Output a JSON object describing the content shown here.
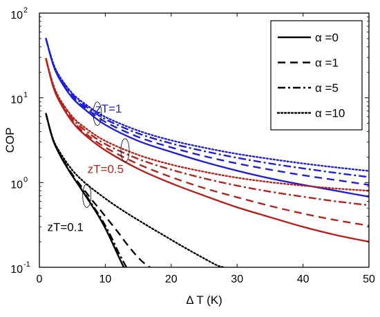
{
  "chart_data": {
    "type": "line",
    "title": "",
    "xlabel": "Δ T (K)",
    "ylabel": "COP",
    "xlim": [
      0,
      50
    ],
    "ylim": [
      0.1,
      100
    ],
    "yscale": "log",
    "grid": false,
    "legend_position": "top-right",
    "x_ticks": [
      0,
      10,
      20,
      30,
      40,
      50
    ],
    "x_tick_labels": [
      "0",
      "10",
      "20",
      "30",
      "40",
      "50"
    ],
    "y_ticks": [
      0.1,
      1,
      10,
      100
    ],
    "y_tick_labels": [
      {
        "base": "10",
        "exp": "-1"
      },
      {
        "base": "10",
        "exp": "0"
      },
      {
        "base": "10",
        "exp": "1"
      },
      {
        "base": "10",
        "exp": "2"
      }
    ],
    "legend": [
      {
        "label": "α =0",
        "dash": "solid"
      },
      {
        "label": "α =1",
        "dash": "dashed"
      },
      {
        "label": "α =5",
        "dash": "dashdot"
      },
      {
        "label": "α =10",
        "dash": "dotted"
      }
    ],
    "colors": {
      "zT=1": "#1f1fd6",
      "zT=0.5": "#b5221c",
      "zT=0.1": "#000000"
    },
    "group_labels": [
      {
        "text": "zT=1",
        "color": "#1f1fd6",
        "x": 8.5,
        "y": 7.5,
        "ellipse_x": 8.8,
        "ellipse_y": 6.5
      },
      {
        "text": "zT=0.5",
        "color": "#b5221c",
        "x": 7.3,
        "y": 1.45,
        "ellipse_x": 13.0,
        "ellipse_y": 2.4
      },
      {
        "text": "zT=0.1",
        "color": "#000000",
        "x": 1.2,
        "y": 0.3,
        "ellipse_x": 7.2,
        "ellipse_y": 0.7
      }
    ],
    "series": [
      {
        "name": "zT=1, α =0",
        "group": "zT=1",
        "dash": "solid",
        "x": [
          1,
          2,
          3,
          5,
          7,
          10,
          15,
          20,
          25,
          30,
          35,
          40,
          45,
          50
        ],
        "y": [
          50,
          26,
          17,
          10,
          7.2,
          4.8,
          3.1,
          2.3,
          1.75,
          1.38,
          1.12,
          0.94,
          0.8,
          0.68
        ]
      },
      {
        "name": "zT=1, α =1",
        "group": "zT=1",
        "dash": "dashed",
        "x": [
          1,
          2,
          3,
          5,
          7,
          10,
          15,
          20,
          25,
          30,
          35,
          40,
          45,
          50
        ],
        "y": [
          50,
          26,
          17.3,
          10.4,
          7.6,
          5.2,
          3.45,
          2.6,
          2.05,
          1.68,
          1.42,
          1.22,
          1.07,
          0.94
        ]
      },
      {
        "name": "zT=1, α =5",
        "group": "zT=1",
        "dash": "dashdot",
        "x": [
          1,
          2,
          3,
          5,
          7,
          10,
          15,
          20,
          25,
          30,
          35,
          40,
          45,
          50
        ],
        "y": [
          50,
          26.5,
          17.8,
          10.9,
          8.0,
          5.6,
          3.8,
          2.9,
          2.35,
          1.96,
          1.68,
          1.47,
          1.3,
          1.16
        ]
      },
      {
        "name": "zT=1, α =10",
        "group": "zT=1",
        "dash": "dotted",
        "x": [
          1,
          2,
          3,
          5,
          7,
          10,
          15,
          20,
          25,
          30,
          35,
          40,
          45,
          50
        ],
        "y": [
          50,
          27,
          18.3,
          11.3,
          8.4,
          5.95,
          4.1,
          3.15,
          2.58,
          2.18,
          1.9,
          1.68,
          1.51,
          1.37
        ]
      },
      {
        "name": "zT=0.5, α =0",
        "group": "zT=0.5",
        "dash": "solid",
        "x": [
          1,
          2,
          3,
          5,
          7,
          10,
          15,
          20,
          25,
          30,
          35,
          40,
          45,
          50
        ],
        "y": [
          29,
          14.3,
          9.2,
          5.2,
          3.6,
          2.4,
          1.45,
          0.98,
          0.7,
          0.51,
          0.39,
          0.3,
          0.24,
          0.2
        ]
      },
      {
        "name": "zT=0.5, α =1",
        "group": "zT=0.5",
        "dash": "dashed",
        "x": [
          1,
          2,
          3,
          5,
          7,
          10,
          15,
          20,
          25,
          30,
          35,
          40,
          45,
          50
        ],
        "y": [
          29,
          14.5,
          9.4,
          5.4,
          3.8,
          2.6,
          1.65,
          1.16,
          0.86,
          0.67,
          0.53,
          0.43,
          0.36,
          0.31
        ]
      },
      {
        "name": "zT=0.5, α =5",
        "group": "zT=0.5",
        "dash": "dashdot",
        "x": [
          1,
          2,
          3,
          5,
          7,
          10,
          15,
          20,
          25,
          30,
          35,
          40,
          45,
          50
        ],
        "y": [
          29,
          14.8,
          9.7,
          5.7,
          4.1,
          2.85,
          1.9,
          1.42,
          1.12,
          0.92,
          0.78,
          0.68,
          0.6,
          0.54
        ]
      },
      {
        "name": "zT=0.5, α =10",
        "group": "zT=0.5",
        "dash": "dotted",
        "x": [
          1,
          2,
          3,
          5,
          7,
          10,
          15,
          20,
          25,
          30,
          35,
          40,
          45,
          50
        ],
        "y": [
          29,
          15.2,
          10.0,
          6.0,
          4.4,
          3.1,
          2.12,
          1.63,
          1.34,
          1.14,
          1.01,
          0.92,
          0.85,
          0.8
        ]
      },
      {
        "name": "zT=0.1, α =0",
        "group": "zT=0.1",
        "dash": "solid",
        "x": [
          1,
          2,
          3,
          4,
          5,
          6,
          7,
          8,
          9,
          10,
          11,
          12,
          12.8
        ],
        "y": [
          6.5,
          3.3,
          2.2,
          1.6,
          1.2,
          0.92,
          0.7,
          0.53,
          0.4,
          0.29,
          0.2,
          0.135,
          0.1
        ]
      },
      {
        "name": "zT=0.1, α =1",
        "group": "zT=0.1",
        "dash": "dashed",
        "x": [
          1,
          2,
          3,
          4,
          5,
          6,
          7,
          8,
          9,
          10,
          11,
          12,
          13,
          14,
          15,
          16,
          16.8
        ],
        "y": [
          6.5,
          3.3,
          2.25,
          1.65,
          1.25,
          0.98,
          0.78,
          0.62,
          0.5,
          0.4,
          0.32,
          0.255,
          0.2,
          0.16,
          0.13,
          0.11,
          0.1
        ]
      },
      {
        "name": "zT=0.1, α =5",
        "group": "zT=0.1",
        "dash": "dashdot",
        "x": [
          1,
          2,
          3,
          4,
          5,
          6,
          7,
          8,
          9,
          10,
          11,
          12,
          13.2
        ],
        "y": [
          6.5,
          3.3,
          2.2,
          1.6,
          1.2,
          0.93,
          0.72,
          0.55,
          0.42,
          0.31,
          0.22,
          0.15,
          0.1
        ]
      },
      {
        "name": "zT=0.1, α =10",
        "group": "zT=0.1",
        "dash": "dotted",
        "x": [
          1,
          2,
          3,
          5,
          7,
          9,
          11,
          13,
          15,
          17,
          19,
          21,
          23,
          25,
          27,
          28
        ],
        "y": [
          6.5,
          3.4,
          2.35,
          1.4,
          0.98,
          0.74,
          0.57,
          0.45,
          0.36,
          0.29,
          0.235,
          0.19,
          0.155,
          0.127,
          0.105,
          0.1
        ]
      }
    ]
  }
}
